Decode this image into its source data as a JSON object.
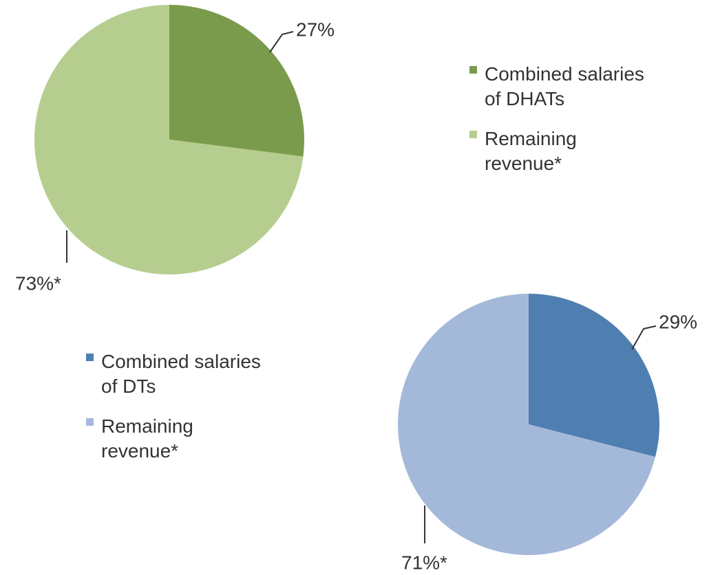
{
  "chart_data": [
    {
      "type": "pie",
      "categories": [
        "Combined salaries of DHATs",
        "Remaining revenue*"
      ],
      "values": [
        27,
        73
      ],
      "value_labels": [
        "27%",
        "73%*"
      ],
      "colors": [
        "#7b9b4c",
        "#b6cd90"
      ]
    },
    {
      "type": "pie",
      "categories": [
        "Combined salaries of DTs",
        "Remaining revenue*"
      ],
      "values": [
        29,
        71
      ],
      "value_labels": [
        "29%",
        "71%*"
      ],
      "colors": [
        "#4f7fb1",
        "#a4b9da"
      ]
    }
  ]
}
